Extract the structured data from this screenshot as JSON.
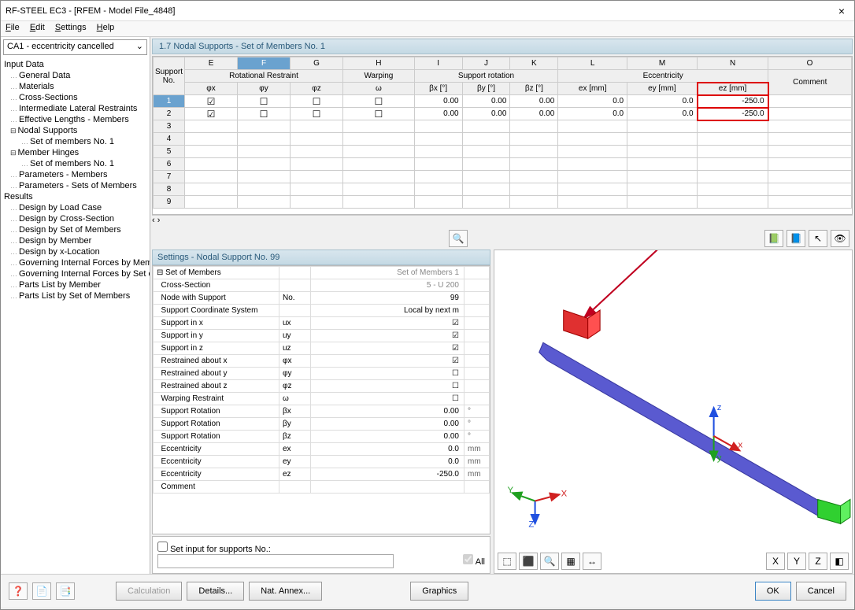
{
  "window": {
    "title": "RF-STEEL EC3 - [RFEM - Model File_4848]",
    "close": "×"
  },
  "menu": {
    "file": "File",
    "edit": "Edit",
    "settings": "Settings",
    "help": "Help"
  },
  "combo": "CA1 - eccentricity cancelled",
  "tree": {
    "input": "Input Data",
    "items1": [
      "General Data",
      "Materials",
      "Cross-Sections",
      "Intermediate Lateral Restraints",
      "Effective Lengths - Members"
    ],
    "nodal": "Nodal Supports",
    "nodal_child": "Set of members No. 1",
    "hinges": "Member Hinges",
    "hinges_child": "Set of members No. 1",
    "items2": [
      "Parameters - Members",
      "Parameters - Sets of Members"
    ],
    "results": "Results",
    "items3": [
      "Design by Load Case",
      "Design by Cross-Section",
      "Design by Set of Members",
      "Design by Member",
      "Design by x-Location",
      "Governing Internal Forces by Member",
      "Governing Internal Forces by Set of Members",
      "Parts List by Member",
      "Parts List by Set of Members"
    ]
  },
  "pane_title": "1.7 Nodal Supports - Set of Members No. 1",
  "grid": {
    "letters": [
      "E",
      "F",
      "G",
      "H",
      "I",
      "J",
      "K",
      "L",
      "M",
      "N",
      "O"
    ],
    "group_rr": "Rotational Restraint",
    "group_warp": "Warping",
    "group_sr": "Support rotation",
    "group_ecc": "Eccentricity",
    "support_no": "Support\nNo.",
    "phi_x": "φx",
    "phi_y": "φy",
    "phi_z": "φz",
    "omega": "ω",
    "bx": "βx [°]",
    "by": "βy [°]",
    "bz": "βz [°]",
    "ex": "ex [mm]",
    "ey": "ey [mm]",
    "ez": "ez [mm]",
    "comment": "Comment",
    "rows": [
      {
        "n": "1",
        "phix": true,
        "phiy": false,
        "phiz": false,
        "w": false,
        "bx": "0.00",
        "by": "0.00",
        "bz": "0.00",
        "ex": "0.0",
        "ey": "0.0",
        "ez": "-250.0"
      },
      {
        "n": "2",
        "phix": true,
        "phiy": false,
        "phiz": false,
        "w": false,
        "bx": "0.00",
        "by": "0.00",
        "bz": "0.00",
        "ex": "0.0",
        "ey": "0.0",
        "ez": "-250.0"
      }
    ]
  },
  "settings": {
    "title": "Settings - Nodal Support No. 99",
    "rows": [
      [
        "Set of Members",
        "",
        "Set of Members 1",
        "",
        "dim"
      ],
      [
        "Cross-Section",
        "",
        "5 - U 200",
        "",
        "dim"
      ],
      [
        "Node with Support",
        "No.",
        "99",
        ""
      ],
      [
        "Support Coordinate System",
        "",
        "Local by next m",
        ""
      ],
      [
        "Support in x",
        "ux",
        "☑",
        ""
      ],
      [
        "Support in y",
        "uy",
        "☑",
        ""
      ],
      [
        "Support in z",
        "uz",
        "☑",
        ""
      ],
      [
        "Restrained about x",
        "φx",
        "☑",
        ""
      ],
      [
        "Restrained about y",
        "φy",
        "☐",
        ""
      ],
      [
        "Restrained about z",
        "φz",
        "☐",
        ""
      ],
      [
        "Warping Restraint",
        "ω",
        "☐",
        ""
      ],
      [
        "Support Rotation",
        "βx",
        "0.00",
        "°"
      ],
      [
        "Support Rotation",
        "βy",
        "0.00",
        "°"
      ],
      [
        "Support Rotation",
        "βz",
        "0.00",
        "°"
      ],
      [
        "Eccentricity",
        "ex",
        "0.0",
        "mm"
      ],
      [
        "Eccentricity",
        "ey",
        "0.0",
        "mm"
      ],
      [
        "Eccentricity",
        "ez",
        "-250.0",
        "mm"
      ],
      [
        "Comment",
        "",
        "",
        ""
      ]
    ],
    "setinput": "Set input for supports No.:",
    "all": "All"
  },
  "viewer": {
    "arrow_color": "#c00020",
    "beam_color": "#5a5ad0",
    "support_red": "#e03030",
    "support_green": "#30d030",
    "axis_z": "#2050e0",
    "axis_y": "#20a020",
    "axis_x": "#d02020"
  },
  "icons": {
    "mag": "🔍",
    "xls1": "📗",
    "xls2": "📘",
    "pick": "↖",
    "eye": "👁",
    "v1": "⬚",
    "v2": "⬛",
    "v3": "🔍",
    "v4": "▦",
    "v5": "↔",
    "vx": "X",
    "vy": "Y",
    "vz": "Z",
    "iso": "◧"
  },
  "footer": {
    "help": "❓",
    "b1": "📄",
    "b2": "📑",
    "calc": "Calculation",
    "details": "Details...",
    "annex": "Nat. Annex...",
    "graphics": "Graphics",
    "ok": "OK",
    "cancel": "Cancel"
  }
}
